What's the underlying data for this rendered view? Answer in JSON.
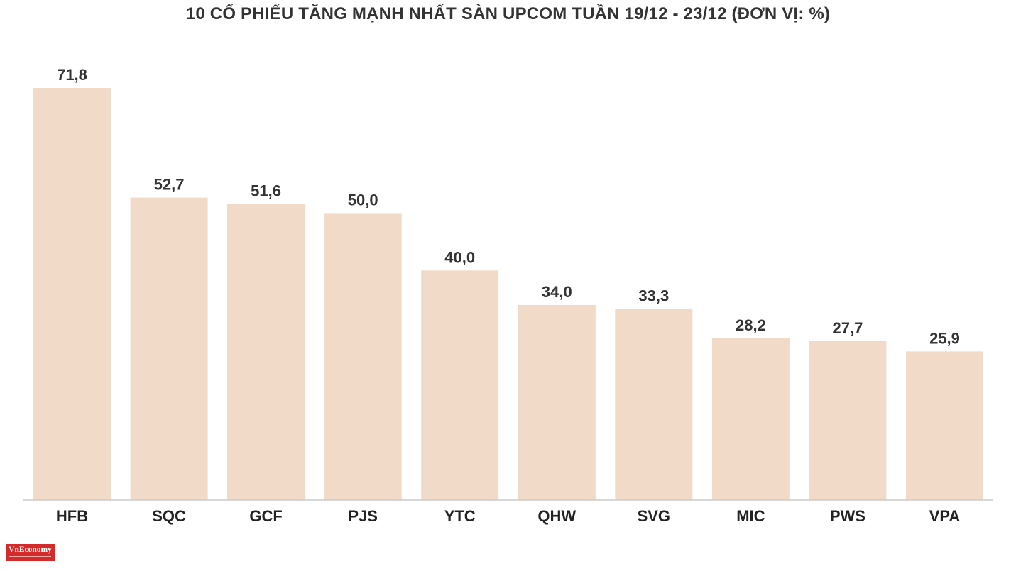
{
  "chart_data": {
    "type": "bar",
    "title": "10 CỔ PHIẾU TĂNG MẠNH NHẤT SÀN UPCOM TUẦN 19/12 - 23/12 (ĐƠN VỊ: %)",
    "categories": [
      "HFB",
      "SQC",
      "GCF",
      "PJS",
      "YTC",
      "QHW",
      "SVG",
      "MIC",
      "PWS",
      "VPA"
    ],
    "values": [
      71.8,
      52.7,
      51.6,
      50.0,
      40.0,
      34.0,
      33.3,
      28.2,
      27.7,
      25.9
    ],
    "value_labels": [
      "71,8",
      "52,7",
      "51,6",
      "50,0",
      "40,0",
      "34,0",
      "33,3",
      "28,2",
      "27,7",
      "25,9"
    ],
    "xlabel": "",
    "ylabel": "",
    "ylim": [
      0,
      80
    ],
    "grid": false,
    "bar_color": "#f2dac9"
  },
  "branding": {
    "logo_text": "VnEconomy"
  }
}
